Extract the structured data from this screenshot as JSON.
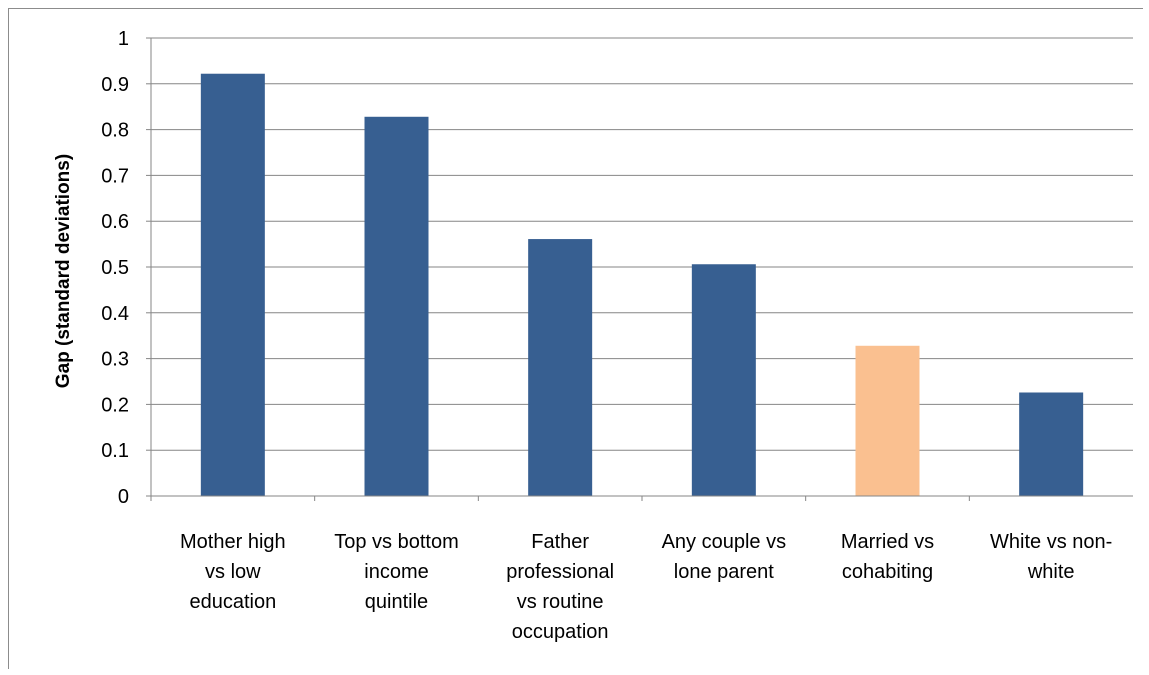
{
  "chart_data": {
    "type": "bar",
    "title": "",
    "xlabel": "",
    "ylabel": "Gap (standard deviations)",
    "ylim": [
      0,
      1
    ],
    "yticks": [
      "0",
      "0.1",
      "0.2",
      "0.3",
      "0.4",
      "0.5",
      "0.6",
      "0.7",
      "0.8",
      "0.9",
      "1"
    ],
    "grid": true,
    "legend": "none",
    "categories": [
      [
        "Mother high",
        "vs low",
        "education"
      ],
      [
        "Top vs bottom",
        "income",
        "quintile"
      ],
      [
        "Father",
        "professional",
        "vs routine",
        "occupation"
      ],
      [
        "Any couple vs",
        "lone parent"
      ],
      [
        "Married vs",
        "cohabiting"
      ],
      [
        "White vs non-",
        "white"
      ]
    ],
    "values": [
      0.922,
      0.828,
      0.561,
      0.506,
      0.328,
      0.226
    ],
    "colors": [
      "#375f91",
      "#375f91",
      "#375f91",
      "#375f91",
      "#fac090",
      "#375f91"
    ]
  }
}
